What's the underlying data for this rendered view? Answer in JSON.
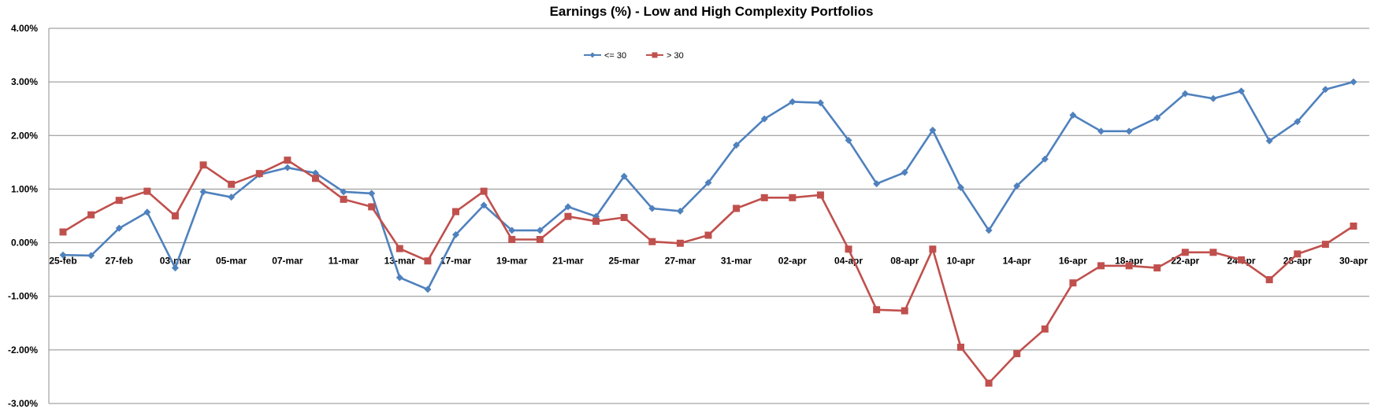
{
  "chart_data": {
    "type": "line",
    "title": "Earnings (%) - Low and High Complexity Portfolios",
    "xlabel": "",
    "ylabel": "",
    "ylim": [
      -3,
      4
    ],
    "yticks": [
      4,
      3,
      2,
      1,
      0,
      -1,
      -2,
      -3
    ],
    "ytick_labels": [
      "4.00%",
      "3.00%",
      "2.00%",
      "1.00%",
      "0.00%",
      "-1.00%",
      "-2.00%",
      "-3.00%"
    ],
    "legend_position": "top-center",
    "x_tick_labels": [
      {
        "index": 0,
        "label": "25-feb"
      },
      {
        "index": 2,
        "label": "27-feb"
      },
      {
        "index": 4,
        "label": "03-mar"
      },
      {
        "index": 6,
        "label": "05-mar"
      },
      {
        "index": 8,
        "label": "07-mar"
      },
      {
        "index": 10,
        "label": "11-mar"
      },
      {
        "index": 12,
        "label": "13-mar"
      },
      {
        "index": 14,
        "label": "17-mar"
      },
      {
        "index": 16,
        "label": "19-mar"
      },
      {
        "index": 18,
        "label": "21-mar"
      },
      {
        "index": 20,
        "label": "25-mar"
      },
      {
        "index": 22,
        "label": "27-mar"
      },
      {
        "index": 24,
        "label": "31-mar"
      },
      {
        "index": 26,
        "label": "02-apr"
      },
      {
        "index": 28,
        "label": "04-apr"
      },
      {
        "index": 30,
        "label": "08-apr"
      },
      {
        "index": 32,
        "label": "10-apr"
      },
      {
        "index": 34,
        "label": "14-apr"
      },
      {
        "index": 36,
        "label": "16-apr"
      },
      {
        "index": 38,
        "label": "18-apr"
      },
      {
        "index": 40,
        "label": "22-apr"
      },
      {
        "index": 42,
        "label": "24-apr"
      },
      {
        "index": 44,
        "label": "28-apr"
      },
      {
        "index": 46,
        "label": "30-apr"
      }
    ],
    "series": [
      {
        "name": "<= 30",
        "color": "#4f81bd",
        "marker": "diamond",
        "values": [
          -0.23,
          -0.24,
          0.27,
          0.57,
          -0.47,
          0.95,
          0.85,
          1.27,
          1.4,
          1.3,
          0.95,
          0.92,
          -0.65,
          -0.87,
          0.15,
          0.7,
          0.23,
          0.23,
          0.67,
          0.49,
          1.24,
          0.64,
          0.59,
          1.12,
          1.82,
          2.31,
          2.63,
          2.61,
          1.91,
          1.1,
          1.31,
          2.1,
          1.03,
          0.23,
          1.06,
          1.56,
          2.38,
          2.08,
          2.08,
          2.33,
          2.78,
          2.69,
          2.83,
          1.9,
          2.26,
          2.86,
          3.0
        ]
      },
      {
        "name": "> 30",
        "color": "#c0504d",
        "marker": "square",
        "values": [
          0.2,
          0.52,
          0.79,
          0.96,
          0.5,
          1.45,
          1.09,
          1.29,
          1.54,
          1.2,
          0.81,
          0.67,
          -0.11,
          -0.34,
          0.58,
          0.96,
          0.06,
          0.06,
          0.49,
          0.4,
          0.47,
          0.02,
          -0.01,
          0.14,
          0.64,
          0.84,
          0.84,
          0.89,
          -0.12,
          -1.25,
          -1.27,
          -0.12,
          -1.95,
          -2.62,
          -2.07,
          -1.61,
          -0.75,
          -0.43,
          -0.43,
          -0.47,
          -0.18,
          -0.18,
          -0.32,
          -0.69,
          -0.21,
          -0.03,
          0.31
        ]
      }
    ]
  }
}
